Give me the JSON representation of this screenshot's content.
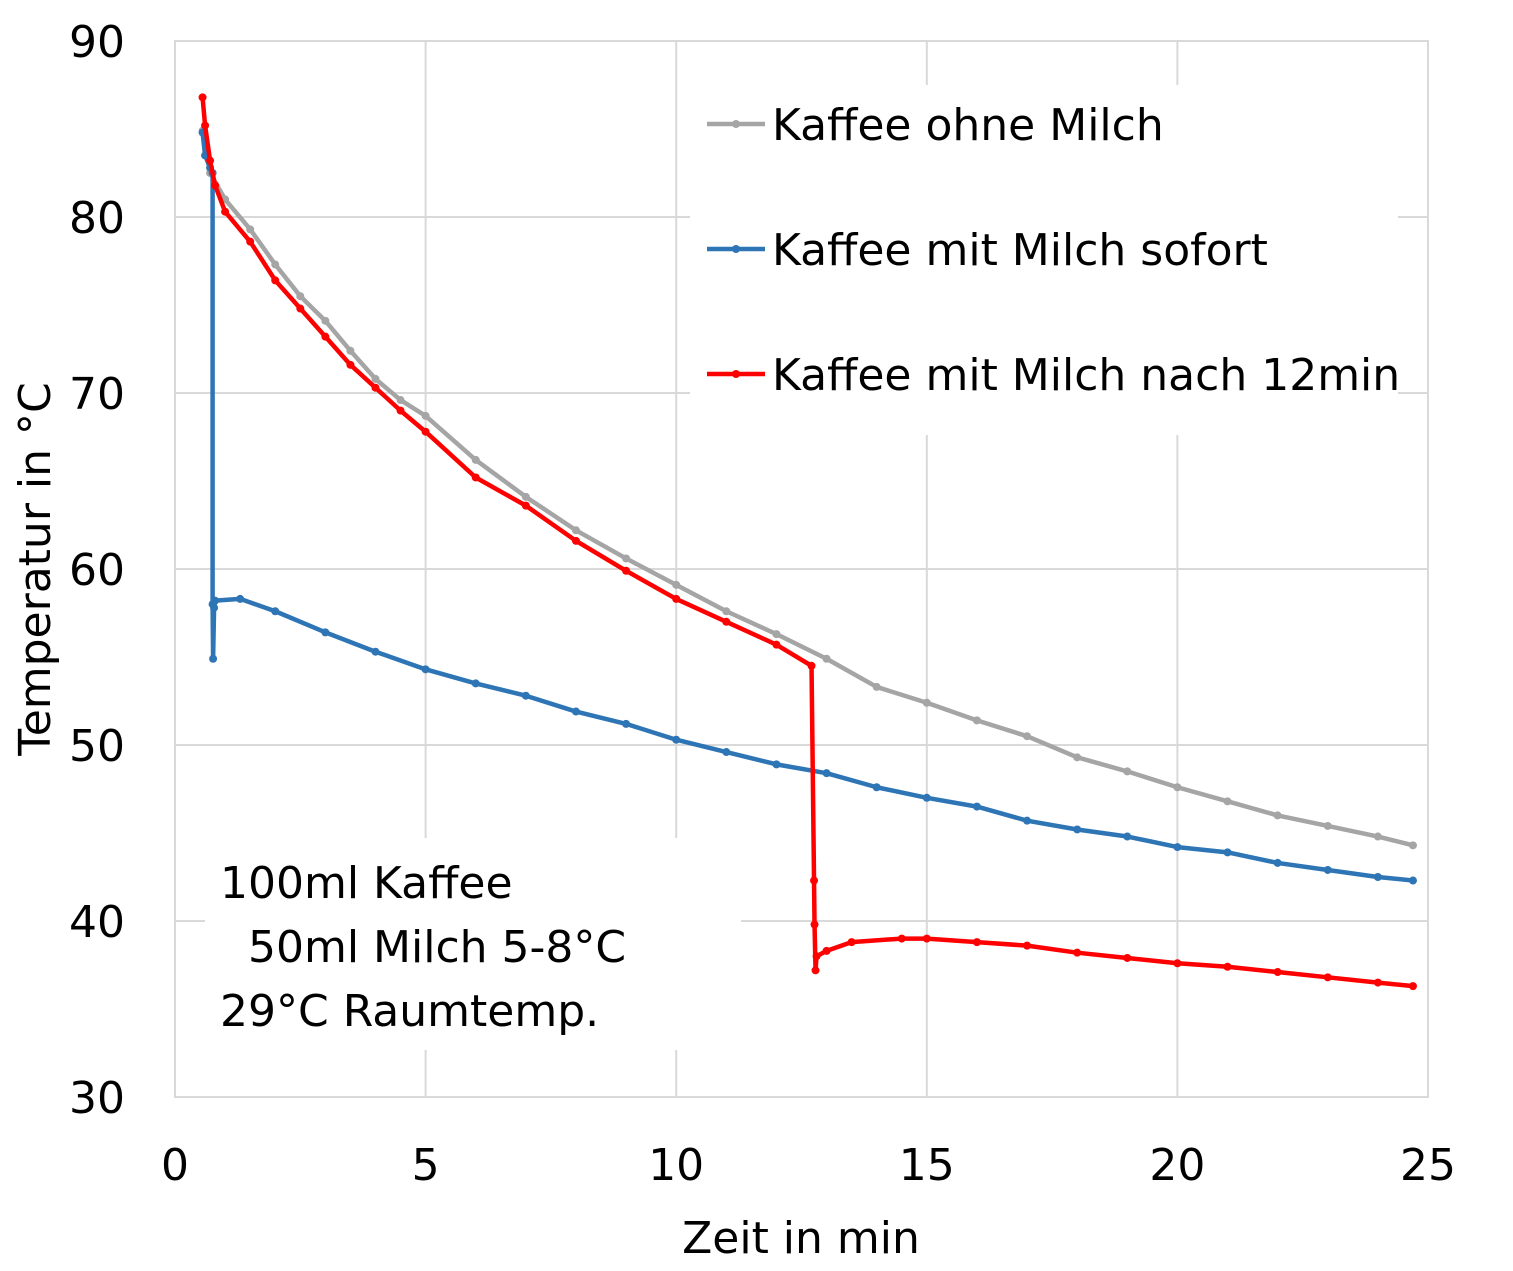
{
  "chart_data": {
    "type": "line",
    "title": "",
    "xlabel": "Zeit in min",
    "ylabel": "Temperatur in °C",
    "xlim": [
      0,
      25
    ],
    "ylim": [
      30,
      90
    ],
    "xticks": [
      0,
      5,
      10,
      15,
      20,
      25
    ],
    "yticks": [
      30,
      40,
      50,
      60,
      70,
      80,
      90
    ],
    "grid": true,
    "legend_position": "top-right",
    "annotation": [
      "100ml Kaffee",
      "  50ml Milch 5-8°C",
      "29°C Raumtemp."
    ],
    "series": [
      {
        "name": "Kaffee ohne Milch",
        "color": "#A5A5A5",
        "x": [
          0.55,
          0.7,
          1,
          1.5,
          2,
          2.5,
          3,
          3.5,
          4,
          4.5,
          5,
          6,
          7,
          8,
          9,
          10,
          11,
          12,
          13,
          14,
          15,
          16,
          17,
          18,
          19,
          20,
          21,
          22,
          23,
          24,
          24.7
        ],
        "y": [
          84.9,
          82.5,
          81,
          79.3,
          77.3,
          75.5,
          74.1,
          72.4,
          70.8,
          69.6,
          68.7,
          66.2,
          64.1,
          62.2,
          60.6,
          59.1,
          57.6,
          56.3,
          54.9,
          53.3,
          52.4,
          51.4,
          50.5,
          49.3,
          48.5,
          47.6,
          46.8,
          46.0,
          45.4,
          44.8,
          44.3
        ]
      },
      {
        "name": "Kaffee mit Milch sofort",
        "color": "#2E75B6",
        "x": [
          0.55,
          0.6,
          0.7,
          0.75,
          0.75,
          0.76,
          0.78,
          0.8,
          1.3,
          2,
          3,
          4,
          5,
          6,
          7,
          8,
          9,
          10,
          11,
          12,
          13,
          14,
          15,
          16,
          17,
          18,
          19,
          20,
          21,
          22,
          23,
          24,
          24.7
        ],
        "y": [
          84.8,
          83.5,
          82.8,
          82.5,
          58.0,
          54.9,
          57.8,
          58.2,
          58.3,
          57.6,
          56.4,
          55.3,
          54.3,
          53.5,
          52.8,
          51.9,
          51.2,
          50.3,
          49.6,
          48.9,
          48.4,
          47.6,
          47.0,
          46.5,
          45.7,
          45.2,
          44.8,
          44.2,
          43.9,
          43.3,
          42.9,
          42.5,
          42.3
        ]
      },
      {
        "name": "Kaffee mit Milch nach 12min",
        "color": "#FF0000",
        "x": [
          0.55,
          0.6,
          0.7,
          0.8,
          1,
          1.5,
          2,
          2.5,
          3,
          3.5,
          4,
          4.5,
          5,
          6,
          7,
          8,
          9,
          10,
          11,
          12,
          12.7,
          12.75,
          12.76,
          12.78,
          12.8,
          13,
          13.5,
          14.5,
          15,
          16,
          17,
          18,
          19,
          20,
          21,
          22,
          23,
          24,
          24.7
        ],
        "y": [
          86.8,
          85.2,
          83.2,
          81.8,
          80.3,
          78.6,
          76.4,
          74.8,
          73.2,
          71.6,
          70.3,
          69.0,
          67.8,
          65.2,
          63.6,
          61.6,
          59.9,
          58.3,
          57.0,
          55.7,
          54.5,
          42.3,
          39.8,
          37.2,
          38.0,
          38.3,
          38.8,
          39.0,
          39.0,
          38.8,
          38.6,
          38.2,
          37.9,
          37.6,
          37.4,
          37.1,
          36.8,
          36.5,
          36.3
        ]
      }
    ]
  }
}
